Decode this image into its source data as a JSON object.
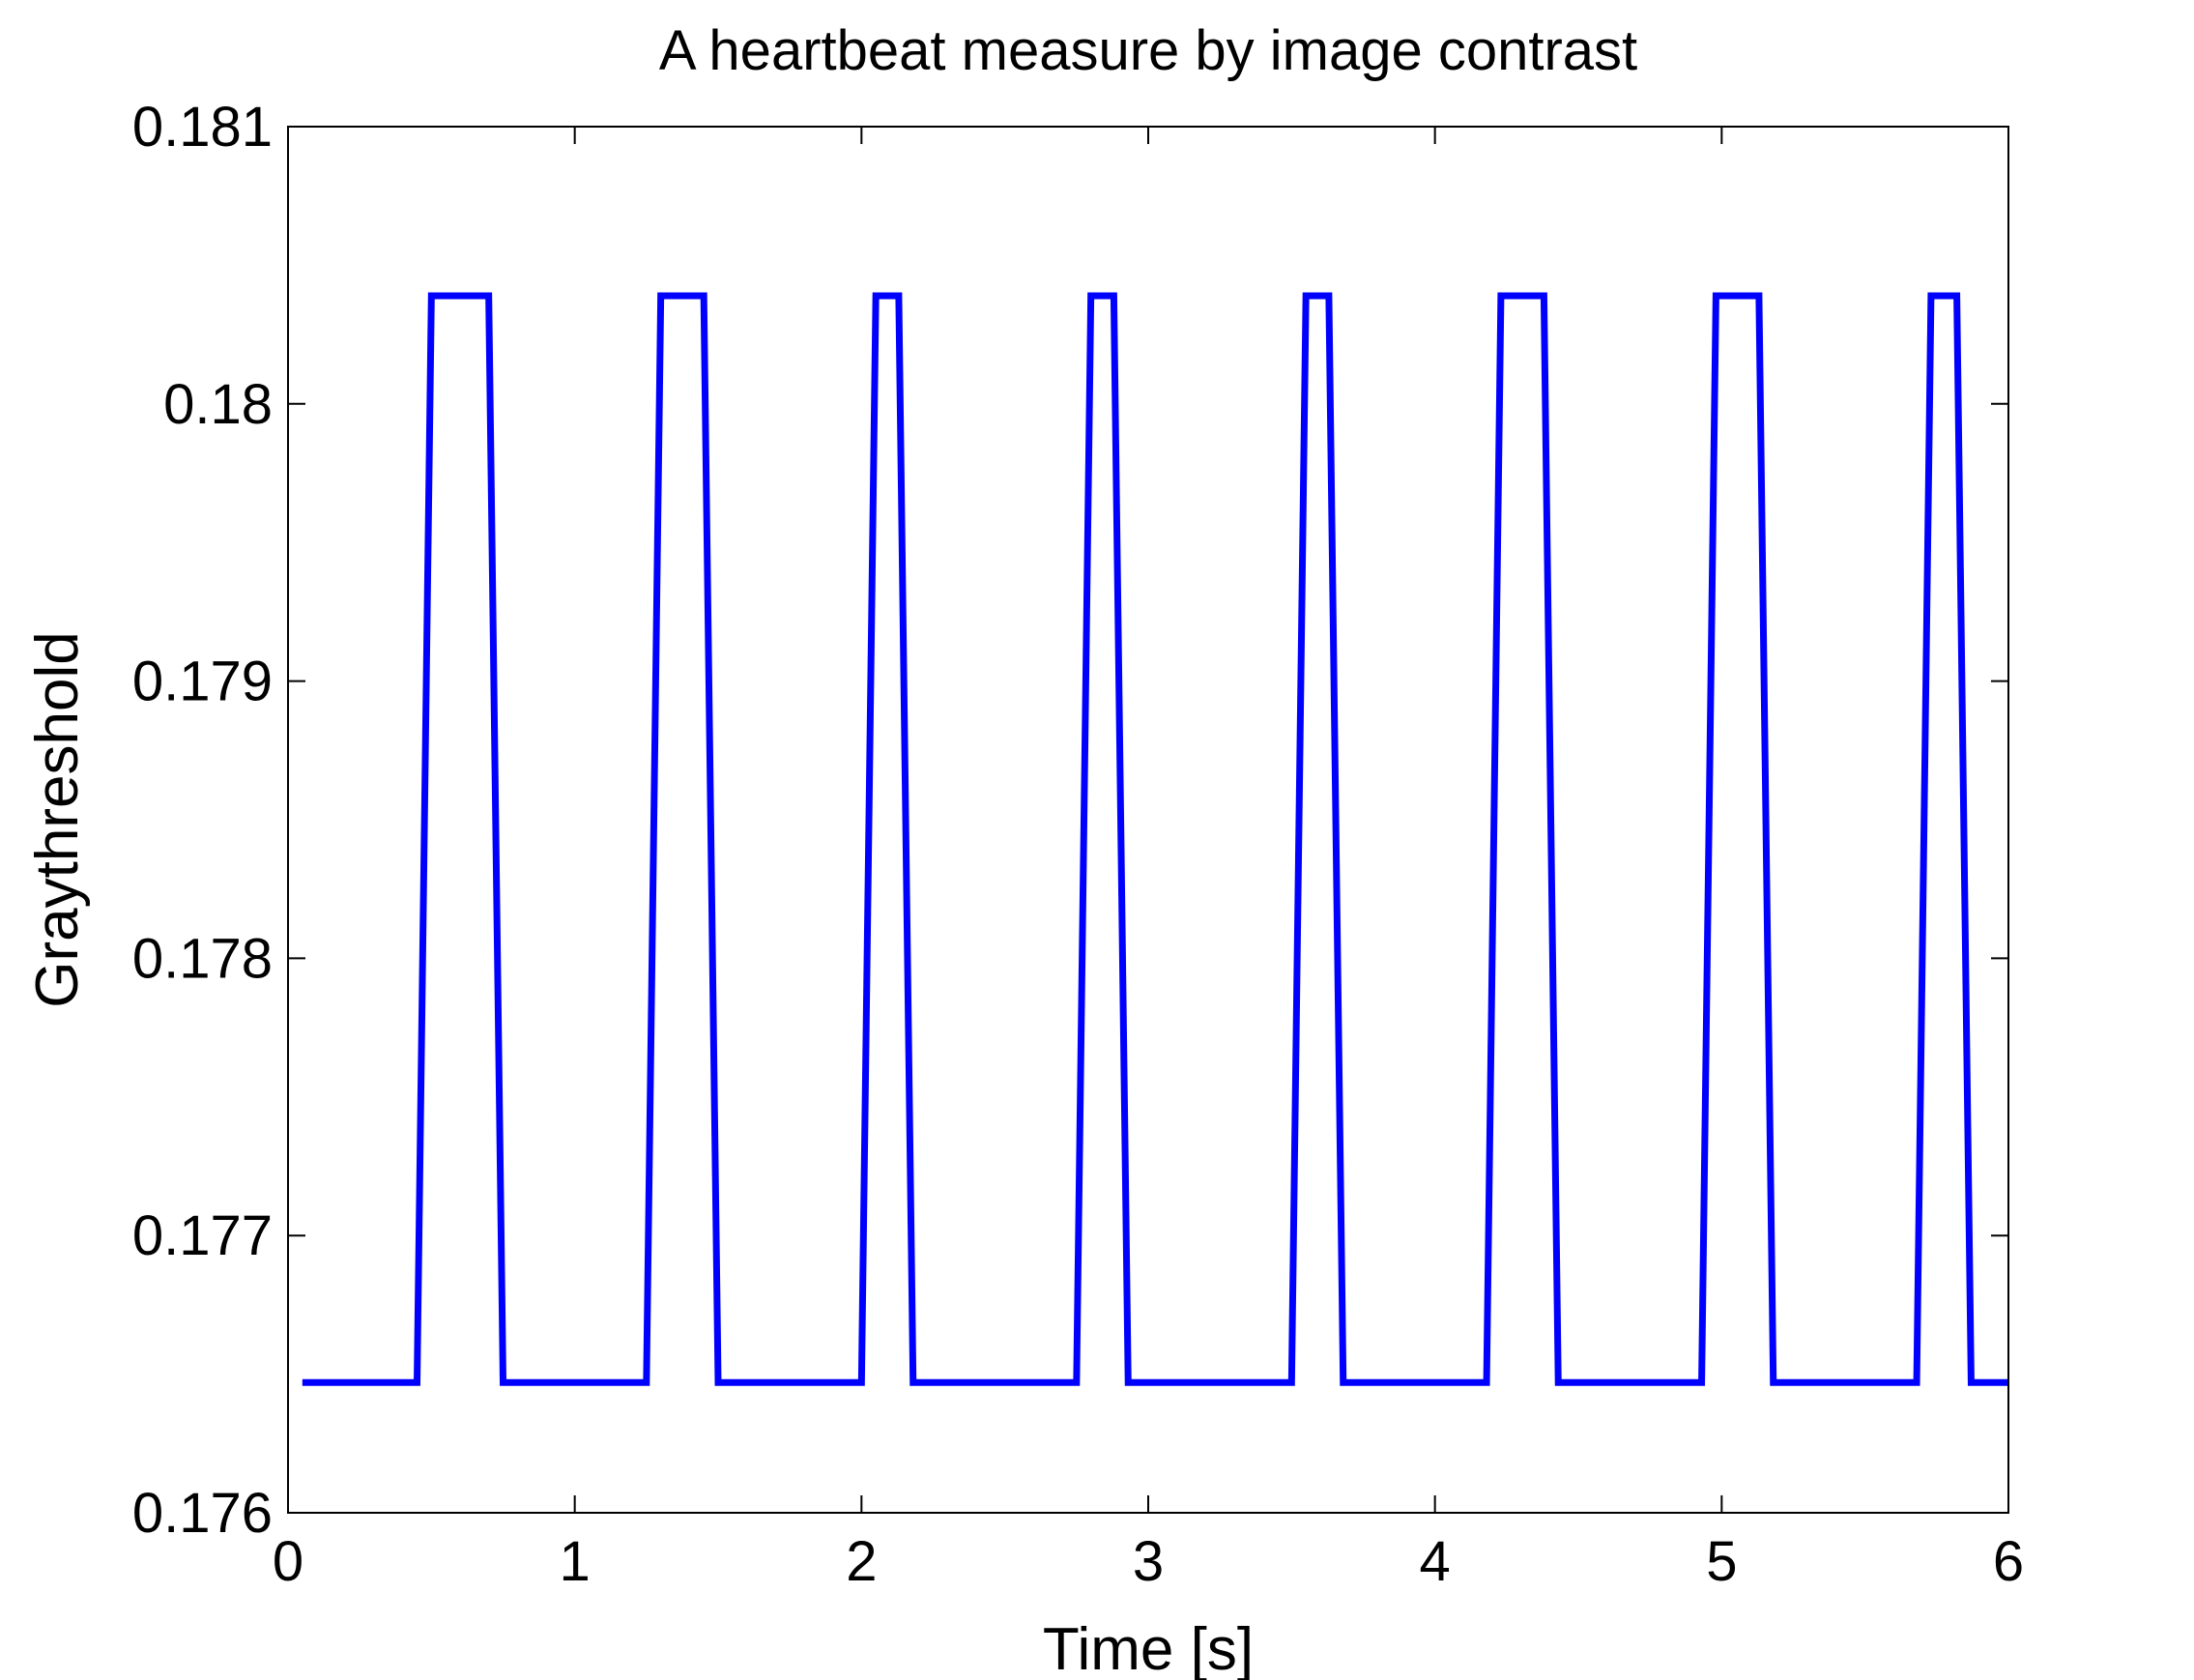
{
  "chart_data": {
    "type": "line",
    "title": "A heartbeat measure by image contrast",
    "xlabel": "Time [s]",
    "ylabel": "Graythreshold",
    "xlim": [
      0,
      6
    ],
    "ylim": [
      0.176,
      0.181
    ],
    "x_ticks": [
      0,
      1,
      2,
      3,
      4,
      5,
      6
    ],
    "x_tick_labels": [
      "0",
      "1",
      "2",
      "3",
      "4",
      "5",
      "6"
    ],
    "y_ticks": [
      0.176,
      0.177,
      0.178,
      0.179,
      0.18,
      0.181
    ],
    "y_tick_labels": [
      "0.176",
      "0.177",
      "0.178",
      "0.179",
      "0.18",
      "0.181"
    ],
    "grid": false,
    "legend": "none",
    "series": [
      {
        "color": "#0000ff",
        "x": [
          0.05,
          0.45,
          0.5,
          0.7,
          0.75,
          1.25,
          1.3,
          1.45,
          1.5,
          2.0,
          2.05,
          2.13,
          2.18,
          2.75,
          2.8,
          2.88,
          2.93,
          3.5,
          3.55,
          3.63,
          3.68,
          4.18,
          4.23,
          4.38,
          4.43,
          4.93,
          4.98,
          5.13,
          5.18,
          5.68,
          5.73,
          5.82,
          5.87,
          6.0
        ],
        "y": [
          0.17647,
          0.17647,
          0.18039,
          0.18039,
          0.17647,
          0.17647,
          0.18039,
          0.18039,
          0.17647,
          0.17647,
          0.18039,
          0.18039,
          0.17647,
          0.17647,
          0.18039,
          0.18039,
          0.17647,
          0.17647,
          0.18039,
          0.18039,
          0.17647,
          0.17647,
          0.18039,
          0.18039,
          0.17647,
          0.17647,
          0.18039,
          0.18039,
          0.17647,
          0.17647,
          0.18039,
          0.18039,
          0.17647,
          0.17647
        ]
      }
    ]
  }
}
